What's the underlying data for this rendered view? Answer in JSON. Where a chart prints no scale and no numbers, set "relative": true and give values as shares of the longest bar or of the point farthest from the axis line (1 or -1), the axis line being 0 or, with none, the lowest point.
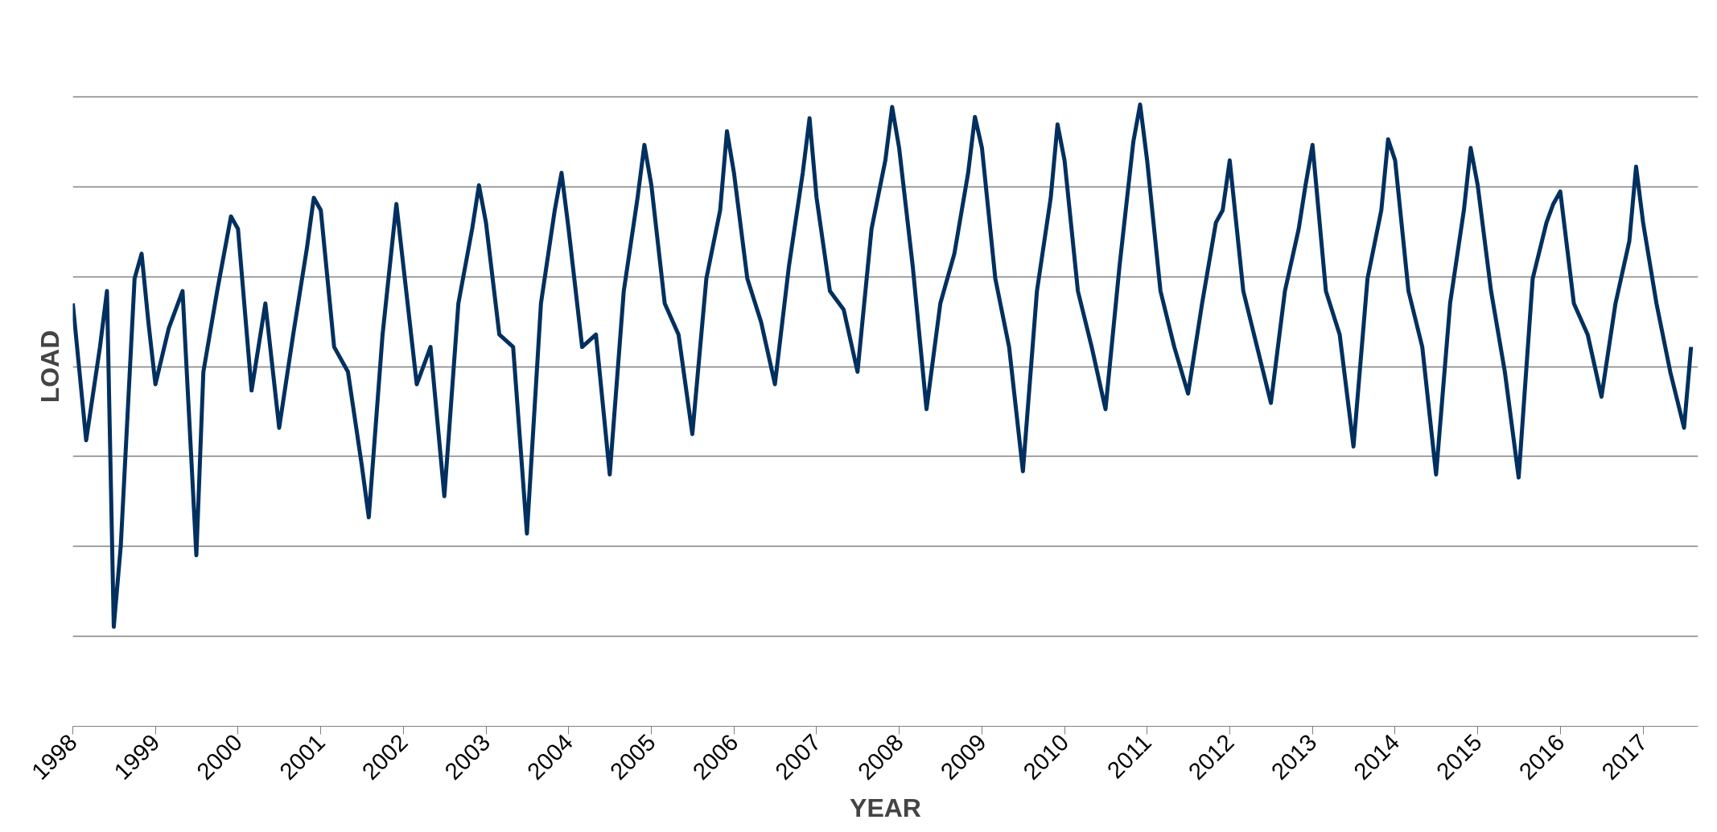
{
  "chart_data": {
    "type": "line",
    "xlabel": "YEAR",
    "ylabel": "LOAD",
    "relative": true,
    "grid": "y",
    "line_style": "solid",
    "xlim": [
      "1998-01",
      "2017-09"
    ],
    "xticks": [
      "1998",
      "1999",
      "2000",
      "2001",
      "2002",
      "2003",
      "2004",
      "2005",
      "2006",
      "2007",
      "2008",
      "2009",
      "2010",
      "2011",
      "2012",
      "2013",
      "2014",
      "2015",
      "2016",
      "2017"
    ],
    "x": [
      "1998-01",
      "1998-03",
      "1998-05",
      "1998-06",
      "1998-07",
      "1998-08",
      "1998-10",
      "1998-11",
      "1998-12",
      "1999-01",
      "1999-03",
      "1999-05",
      "1999-07",
      "1999-08",
      "1999-10",
      "1999-12",
      "2000-01",
      "2000-03",
      "2000-05",
      "2000-07",
      "2000-09",
      "2000-11",
      "2000-12",
      "2001-01",
      "2001-03",
      "2001-05",
      "2001-07",
      "2001-08",
      "2001-10",
      "2001-12",
      "2002-01",
      "2002-03",
      "2002-05",
      "2002-07",
      "2002-09",
      "2002-11",
      "2002-12",
      "2003-01",
      "2003-03",
      "2003-05",
      "2003-07",
      "2003-09",
      "2003-11",
      "2003-12",
      "2004-01",
      "2004-03",
      "2004-05",
      "2004-07",
      "2004-09",
      "2004-11",
      "2004-12",
      "2005-01",
      "2005-03",
      "2005-05",
      "2005-07",
      "2005-09",
      "2005-11",
      "2005-12",
      "2006-01",
      "2006-03",
      "2006-05",
      "2006-07",
      "2006-09",
      "2006-11",
      "2006-12",
      "2007-01",
      "2007-03",
      "2007-05",
      "2007-07",
      "2007-09",
      "2007-11",
      "2007-12",
      "2008-01",
      "2008-03",
      "2008-05",
      "2008-07",
      "2008-09",
      "2008-11",
      "2008-12",
      "2009-01",
      "2009-03",
      "2009-05",
      "2009-07",
      "2009-09",
      "2009-11",
      "2009-12",
      "2010-01",
      "2010-03",
      "2010-05",
      "2010-07",
      "2010-09",
      "2010-11",
      "2010-12",
      "2011-01",
      "2011-03",
      "2011-05",
      "2011-07",
      "2011-09",
      "2011-11",
      "2011-12",
      "2012-01",
      "2012-03",
      "2012-05",
      "2012-07",
      "2012-09",
      "2012-11",
      "2012-12",
      "2013-01",
      "2013-03",
      "2013-05",
      "2013-07",
      "2013-09",
      "2013-11",
      "2013-12",
      "2014-01",
      "2014-03",
      "2014-05",
      "2014-07",
      "2014-09",
      "2014-11",
      "2014-12",
      "2015-01",
      "2015-03",
      "2015-05",
      "2015-07",
      "2015-09",
      "2015-11",
      "2015-12",
      "2016-01",
      "2016-03",
      "2016-05",
      "2016-07",
      "2016-09",
      "2016-11",
      "2016-12",
      "2017-01",
      "2017-03",
      "2017-05",
      "2017-07",
      "2017-08"
    ],
    "series": [
      {
        "color": "#00305f",
        "values": [
          0.68,
          0.46,
          0.61,
          0.7,
          0.16,
          0.29,
          0.72,
          0.76,
          0.65,
          0.55,
          0.64,
          0.7,
          0.275,
          0.57,
          0.7,
          0.82,
          0.8,
          0.54,
          0.68,
          0.48,
          0.63,
          0.77,
          0.85,
          0.83,
          0.61,
          0.57,
          0.42,
          0.336,
          0.63,
          0.84,
          0.74,
          0.55,
          0.61,
          0.37,
          0.68,
          0.8,
          0.87,
          0.81,
          0.63,
          0.61,
          0.31,
          0.68,
          0.83,
          0.89,
          0.8,
          0.61,
          0.63,
          0.405,
          0.7,
          0.85,
          0.935,
          0.87,
          0.68,
          0.63,
          0.47,
          0.72,
          0.83,
          0.957,
          0.89,
          0.72,
          0.65,
          0.55,
          0.74,
          0.89,
          0.978,
          0.85,
          0.7,
          0.67,
          0.57,
          0.8,
          0.91,
          0.996,
          0.93,
          0.74,
          0.51,
          0.68,
          0.76,
          0.89,
          0.98,
          0.93,
          0.72,
          0.61,
          0.41,
          0.7,
          0.85,
          0.968,
          0.91,
          0.7,
          0.61,
          0.51,
          0.74,
          0.94,
          1.0,
          0.91,
          0.7,
          0.61,
          0.535,
          0.68,
          0.81,
          0.83,
          0.91,
          0.7,
          0.61,
          0.52,
          0.7,
          0.8,
          0.87,
          0.935,
          0.7,
          0.63,
          0.45,
          0.72,
          0.83,
          0.944,
          0.91,
          0.7,
          0.61,
          0.405,
          0.68,
          0.83,
          0.93,
          0.87,
          0.7,
          0.57,
          0.4,
          0.72,
          0.81,
          0.84,
          0.86,
          0.68,
          0.63,
          0.53,
          0.68,
          0.78,
          0.9,
          0.81,
          0.68,
          0.57,
          0.48,
          0.61
        ]
      }
    ]
  }
}
